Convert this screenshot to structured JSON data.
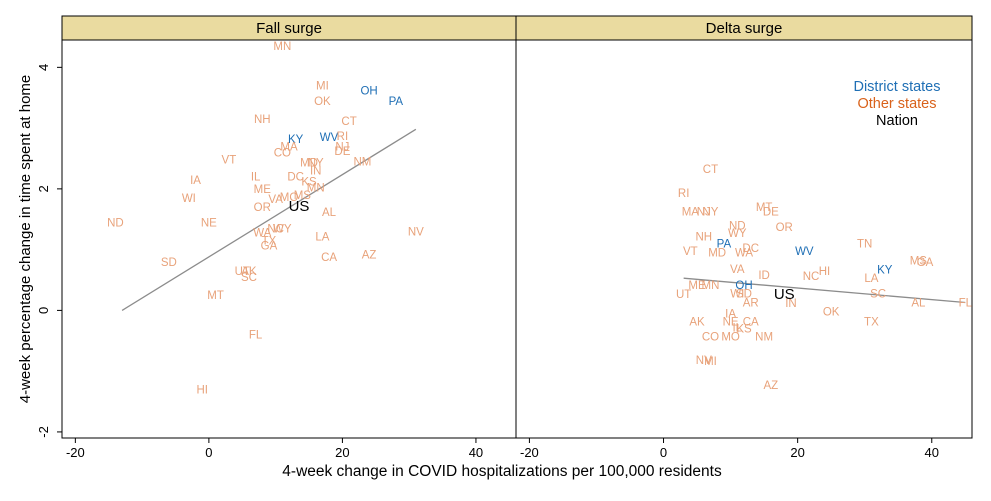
{
  "chart_data": {
    "type": "scatter",
    "xlabel": "4-week change in COVID hospitalizations per 100,000 residents",
    "ylabel": "4-week percentage change in time spent at home",
    "xlim": [
      -22,
      46
    ],
    "ylim": [
      -2.1,
      4.45
    ],
    "x_ticks": [
      -20,
      0,
      20,
      40
    ],
    "x_tick_labels": [
      "-20",
      "0",
      "20",
      "40"
    ],
    "y_ticks": [
      -2,
      0,
      2,
      4
    ],
    "y_tick_labels": [
      "-2",
      "0",
      "2",
      "4"
    ],
    "grid": false,
    "legend_position": "top-right",
    "legend": [
      {
        "label": "District states",
        "color": "#1f6fb5"
      },
      {
        "label": "Other states",
        "color": "#d9621b"
      },
      {
        "label": "Nation",
        "color": "#000000"
      }
    ],
    "colors": {
      "district": "#1f6fb5",
      "other": "#e8a27a",
      "nation": "#000000",
      "fit": "#8c8c8c",
      "strip": "#eadba0"
    },
    "panels": [
      {
        "title": "Fall surge",
        "fit_line": [
          [
            -13,
            0
          ],
          [
            31,
            2.98
          ]
        ],
        "points": [
          {
            "label": "MN",
            "x": 11,
            "y": 4.35,
            "group": "other"
          },
          {
            "label": "MI",
            "x": 17,
            "y": 3.7,
            "group": "other"
          },
          {
            "label": "OH",
            "x": 24,
            "y": 3.62,
            "group": "district"
          },
          {
            "label": "PA",
            "x": 28,
            "y": 3.45,
            "group": "district"
          },
          {
            "label": "OK",
            "x": 17,
            "y": 3.45,
            "group": "other"
          },
          {
            "label": "NH",
            "x": 8,
            "y": 3.15,
            "group": "other"
          },
          {
            "label": "CT",
            "x": 21,
            "y": 3.12,
            "group": "other"
          },
          {
            "label": "KY",
            "x": 13,
            "y": 2.82,
            "group": "district"
          },
          {
            "label": "WV",
            "x": 18,
            "y": 2.85,
            "group": "district"
          },
          {
            "label": "RI",
            "x": 20,
            "y": 2.87,
            "group": "other"
          },
          {
            "label": "MA",
            "x": 12,
            "y": 2.7,
            "group": "other"
          },
          {
            "label": "NJ",
            "x": 20,
            "y": 2.7,
            "group": "other"
          },
          {
            "label": "DE",
            "x": 20,
            "y": 2.62,
            "group": "other"
          },
          {
            "label": "CO",
            "x": 11,
            "y": 2.6,
            "group": "other"
          },
          {
            "label": "VT",
            "x": 3,
            "y": 2.48,
            "group": "other"
          },
          {
            "label": "NM",
            "x": 23,
            "y": 2.45,
            "group": "other"
          },
          {
            "label": "MD",
            "x": 15,
            "y": 2.43,
            "group": "other"
          },
          {
            "label": "NY",
            "x": 16,
            "y": 2.43,
            "group": "other"
          },
          {
            "label": "IN",
            "x": 16,
            "y": 2.3,
            "group": "other"
          },
          {
            "label": "IA",
            "x": -2,
            "y": 2.15,
            "group": "other"
          },
          {
            "label": "IL",
            "x": 7,
            "y": 2.2,
            "group": "other"
          },
          {
            "label": "DC",
            "x": 13,
            "y": 2.2,
            "group": "other"
          },
          {
            "label": "KS",
            "x": 15,
            "y": 2.12,
            "group": "other"
          },
          {
            "label": "ME",
            "x": 8,
            "y": 2.0,
            "group": "other"
          },
          {
            "label": "MN",
            "x": 16,
            "y": 2.02,
            "group": "other"
          },
          {
            "label": "WI",
            "x": -3,
            "y": 1.85,
            "group": "other"
          },
          {
            "label": "MO",
            "x": 12,
            "y": 1.87,
            "group": "other"
          },
          {
            "label": "MS",
            "x": 14,
            "y": 1.9,
            "group": "other"
          },
          {
            "label": "VA",
            "x": 10,
            "y": 1.83,
            "group": "other"
          },
          {
            "label": "NE",
            "x": 0,
            "y": 1.45,
            "group": "other"
          },
          {
            "label": "ND",
            "x": -14,
            "y": 1.45,
            "group": "other"
          },
          {
            "label": "OR",
            "x": 8,
            "y": 1.7,
            "group": "other"
          },
          {
            "label": "AL",
            "x": 18,
            "y": 1.62,
            "group": "other"
          },
          {
            "label": "NC",
            "x": 10,
            "y": 1.35,
            "group": "other"
          },
          {
            "label": "WY",
            "x": 11,
            "y": 1.35,
            "group": "other"
          },
          {
            "label": "WA",
            "x": 8,
            "y": 1.28,
            "group": "other"
          },
          {
            "label": "TX",
            "x": 9,
            "y": 1.15,
            "group": "other"
          },
          {
            "label": "LA",
            "x": 17,
            "y": 1.22,
            "group": "other"
          },
          {
            "label": "GA",
            "x": 9,
            "y": 1.07,
            "group": "other"
          },
          {
            "label": "NV",
            "x": 31,
            "y": 1.3,
            "group": "other"
          },
          {
            "label": "CA",
            "x": 18,
            "y": 0.88,
            "group": "other"
          },
          {
            "label": "AZ",
            "x": 24,
            "y": 0.92,
            "group": "other"
          },
          {
            "label": "SD",
            "x": -6,
            "y": 0.8,
            "group": "other"
          },
          {
            "label": "UT",
            "x": 5,
            "y": 0.65,
            "group": "other"
          },
          {
            "label": "AK",
            "x": 6,
            "y": 0.65,
            "group": "other"
          },
          {
            "label": "SC",
            "x": 6,
            "y": 0.55,
            "group": "other"
          },
          {
            "label": "MT",
            "x": 1,
            "y": 0.25,
            "group": "other"
          },
          {
            "label": "FL",
            "x": 7,
            "y": -0.4,
            "group": "other"
          },
          {
            "label": "HI",
            "x": -1,
            "y": -1.3,
            "group": "other"
          },
          {
            "label": "US",
            "x": 13.5,
            "y": 1.7,
            "group": "nation"
          }
        ]
      },
      {
        "title": "Delta surge",
        "fit_line": [
          [
            3,
            0.53
          ],
          [
            45,
            0.13
          ]
        ],
        "points": [
          {
            "label": "CT",
            "x": 7,
            "y": 2.33,
            "group": "other"
          },
          {
            "label": "RI",
            "x": 3,
            "y": 1.93,
            "group": "other"
          },
          {
            "label": "MT",
            "x": 15,
            "y": 1.7,
            "group": "other"
          },
          {
            "label": "DE",
            "x": 16,
            "y": 1.63,
            "group": "other"
          },
          {
            "label": "MA",
            "x": 4,
            "y": 1.63,
            "group": "other"
          },
          {
            "label": "NJ",
            "x": 6,
            "y": 1.63,
            "group": "other"
          },
          {
            "label": "NY",
            "x": 7,
            "y": 1.63,
            "group": "other"
          },
          {
            "label": "ND",
            "x": 11,
            "y": 1.4,
            "group": "other"
          },
          {
            "label": "OR",
            "x": 18,
            "y": 1.37,
            "group": "other"
          },
          {
            "label": "NH",
            "x": 6,
            "y": 1.22,
            "group": "other"
          },
          {
            "label": "WY",
            "x": 11,
            "y": 1.27,
            "group": "other"
          },
          {
            "label": "PA",
            "x": 9,
            "y": 1.1,
            "group": "district"
          },
          {
            "label": "TN",
            "x": 30,
            "y": 1.1,
            "group": "other"
          },
          {
            "label": "VT",
            "x": 4,
            "y": 0.98,
            "group": "other"
          },
          {
            "label": "MD",
            "x": 8,
            "y": 0.95,
            "group": "other"
          },
          {
            "label": "WA",
            "x": 12,
            "y": 0.95,
            "group": "other"
          },
          {
            "label": "DC",
            "x": 13,
            "y": 1.03,
            "group": "other"
          },
          {
            "label": "WV",
            "x": 21,
            "y": 0.98,
            "group": "district"
          },
          {
            "label": "MS",
            "x": 38,
            "y": 0.82,
            "group": "other"
          },
          {
            "label": "GA",
            "x": 39,
            "y": 0.8,
            "group": "other"
          },
          {
            "label": "KY",
            "x": 33,
            "y": 0.67,
            "group": "district"
          },
          {
            "label": "VA",
            "x": 11,
            "y": 0.68,
            "group": "other"
          },
          {
            "label": "HI",
            "x": 24,
            "y": 0.65,
            "group": "other"
          },
          {
            "label": "NC",
            "x": 22,
            "y": 0.57,
            "group": "other"
          },
          {
            "label": "LA",
            "x": 31,
            "y": 0.53,
            "group": "other"
          },
          {
            "label": "ID",
            "x": 15,
            "y": 0.58,
            "group": "other"
          },
          {
            "label": "ME",
            "x": 5,
            "y": 0.42,
            "group": "other"
          },
          {
            "label": "MN",
            "x": 7,
            "y": 0.42,
            "group": "other"
          },
          {
            "label": "OH",
            "x": 12,
            "y": 0.42,
            "group": "district"
          },
          {
            "label": "UT",
            "x": 3,
            "y": 0.27,
            "group": "other"
          },
          {
            "label": "WI",
            "x": 11,
            "y": 0.28,
            "group": "other"
          },
          {
            "label": "SD",
            "x": 12,
            "y": 0.28,
            "group": "other"
          },
          {
            "label": "SC",
            "x": 32,
            "y": 0.28,
            "group": "other"
          },
          {
            "label": "AR",
            "x": 13,
            "y": 0.13,
            "group": "other"
          },
          {
            "label": "IN",
            "x": 19,
            "y": 0.12,
            "group": "other"
          },
          {
            "label": "AL",
            "x": 38,
            "y": 0.13,
            "group": "other"
          },
          {
            "label": "FL",
            "x": 45,
            "y": 0.13,
            "group": "other"
          },
          {
            "label": "OK",
            "x": 25,
            "y": -0.02,
            "group": "other"
          },
          {
            "label": "IA",
            "x": 10,
            "y": -0.05,
            "group": "other"
          },
          {
            "label": "AK",
            "x": 5,
            "y": -0.18,
            "group": "other"
          },
          {
            "label": "NE",
            "x": 10,
            "y": -0.18,
            "group": "other"
          },
          {
            "label": "CA",
            "x": 13,
            "y": -0.18,
            "group": "other"
          },
          {
            "label": "TX",
            "x": 31,
            "y": -0.18,
            "group": "other"
          },
          {
            "label": "IL",
            "x": 11,
            "y": -0.28,
            "group": "other"
          },
          {
            "label": "KS",
            "x": 12,
            "y": -0.3,
            "group": "other"
          },
          {
            "label": "CO",
            "x": 7,
            "y": -0.43,
            "group": "other"
          },
          {
            "label": "MO",
            "x": 10,
            "y": -0.43,
            "group": "other"
          },
          {
            "label": "NM",
            "x": 15,
            "y": -0.43,
            "group": "other"
          },
          {
            "label": "NV",
            "x": 6,
            "y": -0.82,
            "group": "other"
          },
          {
            "label": "MI",
            "x": 7,
            "y": -0.83,
            "group": "other"
          },
          {
            "label": "AZ",
            "x": 16,
            "y": -1.23,
            "group": "other"
          },
          {
            "label": "US",
            "x": 18,
            "y": 0.25,
            "group": "nation"
          }
        ]
      }
    ]
  }
}
